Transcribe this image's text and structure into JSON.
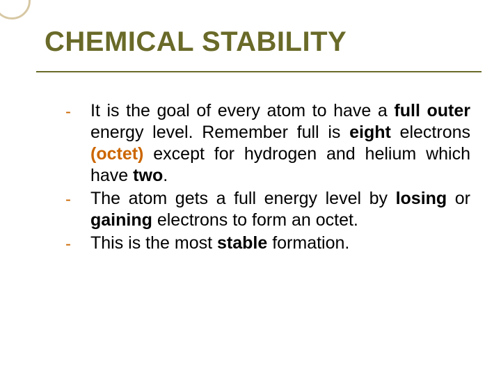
{
  "slide": {
    "title": "CHEMICAL STABILITY",
    "title_color": "#6a6a29",
    "underline_color": "#6a6a29",
    "circle_border_color": "#d7c8a4",
    "bullet_char": "-",
    "bullet_color": "#cc6600",
    "accent_color": "#cc6600",
    "body_text_color": "#000000",
    "items": [
      {
        "segments": [
          {
            "text": "It is the goal of every atom to have a "
          },
          {
            "text": "full outer",
            "bold": true
          },
          {
            "text": " energy level.    Remember full is "
          },
          {
            "text": "eight",
            "bold": true
          },
          {
            "text": " electrons "
          },
          {
            "text": "(octet)",
            "bold": true,
            "accent": true
          },
          {
            "text": " except for hydrogen and helium which have "
          },
          {
            "text": "two",
            "bold": true
          },
          {
            "text": "."
          }
        ]
      },
      {
        "segments": [
          {
            "text": "The atom gets a full energy level by "
          },
          {
            "text": "losing",
            "bold": true
          },
          {
            "text": " or "
          },
          {
            "text": "gaining",
            "bold": true
          },
          {
            "text": " electrons to form an octet."
          }
        ]
      },
      {
        "segments": [
          {
            "text": "This is the most "
          },
          {
            "text": "stable",
            "bold": true
          },
          {
            "text": " formation."
          }
        ]
      }
    ]
  }
}
